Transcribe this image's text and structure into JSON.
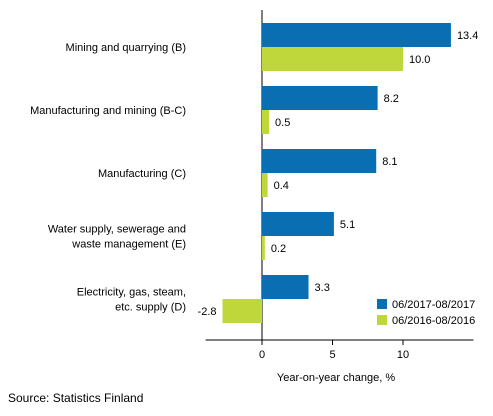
{
  "chart_data": {
    "type": "bar",
    "orientation": "horizontal",
    "categories": [
      "Mining and quarrying (B)",
      "Manufacturing and mining (B-C)",
      "Manufacturing (C)",
      "Water supply, sewerage and waste management (E)",
      "Electricity, gas, steam, etc. supply (D)"
    ],
    "category_lines": [
      [
        "Mining and quarrying (B)"
      ],
      [
        "Manufacturing and mining (B-C)"
      ],
      [
        "Manufacturing (C)"
      ],
      [
        "Water supply, sewerage and",
        "waste management (E)"
      ],
      [
        "Electricity, gas, steam,",
        "etc. supply (D)"
      ]
    ],
    "series": [
      {
        "name": "06/2017-08/2017",
        "color": "#0a6fb2",
        "values": [
          13.4,
          8.2,
          8.1,
          5.1,
          3.3
        ]
      },
      {
        "name": "06/2016-08/2016",
        "color": "#bfd73a",
        "values": [
          10.0,
          0.5,
          0.4,
          0.2,
          -2.8
        ]
      }
    ],
    "value_labels": [
      [
        "13.4",
        "8.2",
        "8.1",
        "5.1",
        "3.3"
      ],
      [
        "10.0",
        "0.5",
        "0.4",
        "0.2",
        "-2.8"
      ]
    ],
    "xlabel": "Year-on-year change, %",
    "xlim": [
      -4,
      15
    ],
    "xticks": [
      0,
      5,
      10
    ],
    "legend_position": "bottom-right",
    "grid": false
  },
  "source": "Source: Statistics Finland"
}
